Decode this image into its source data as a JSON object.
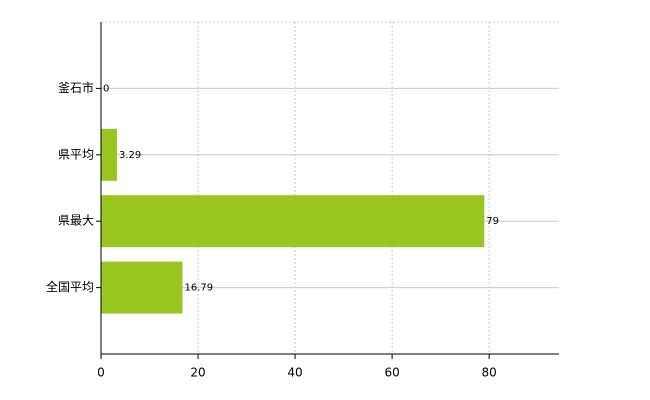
{
  "chart_data": {
    "type": "bar",
    "orientation": "horizontal",
    "categories": [
      "釜石市",
      "県平均",
      "県最大",
      "全国平均"
    ],
    "values": [
      0,
      3.29,
      79,
      16.79
    ],
    "color": "#9ac61f",
    "xlim": [
      0,
      94.4
    ],
    "xticks": [
      0,
      20,
      40,
      60,
      80
    ],
    "grid": true
  }
}
